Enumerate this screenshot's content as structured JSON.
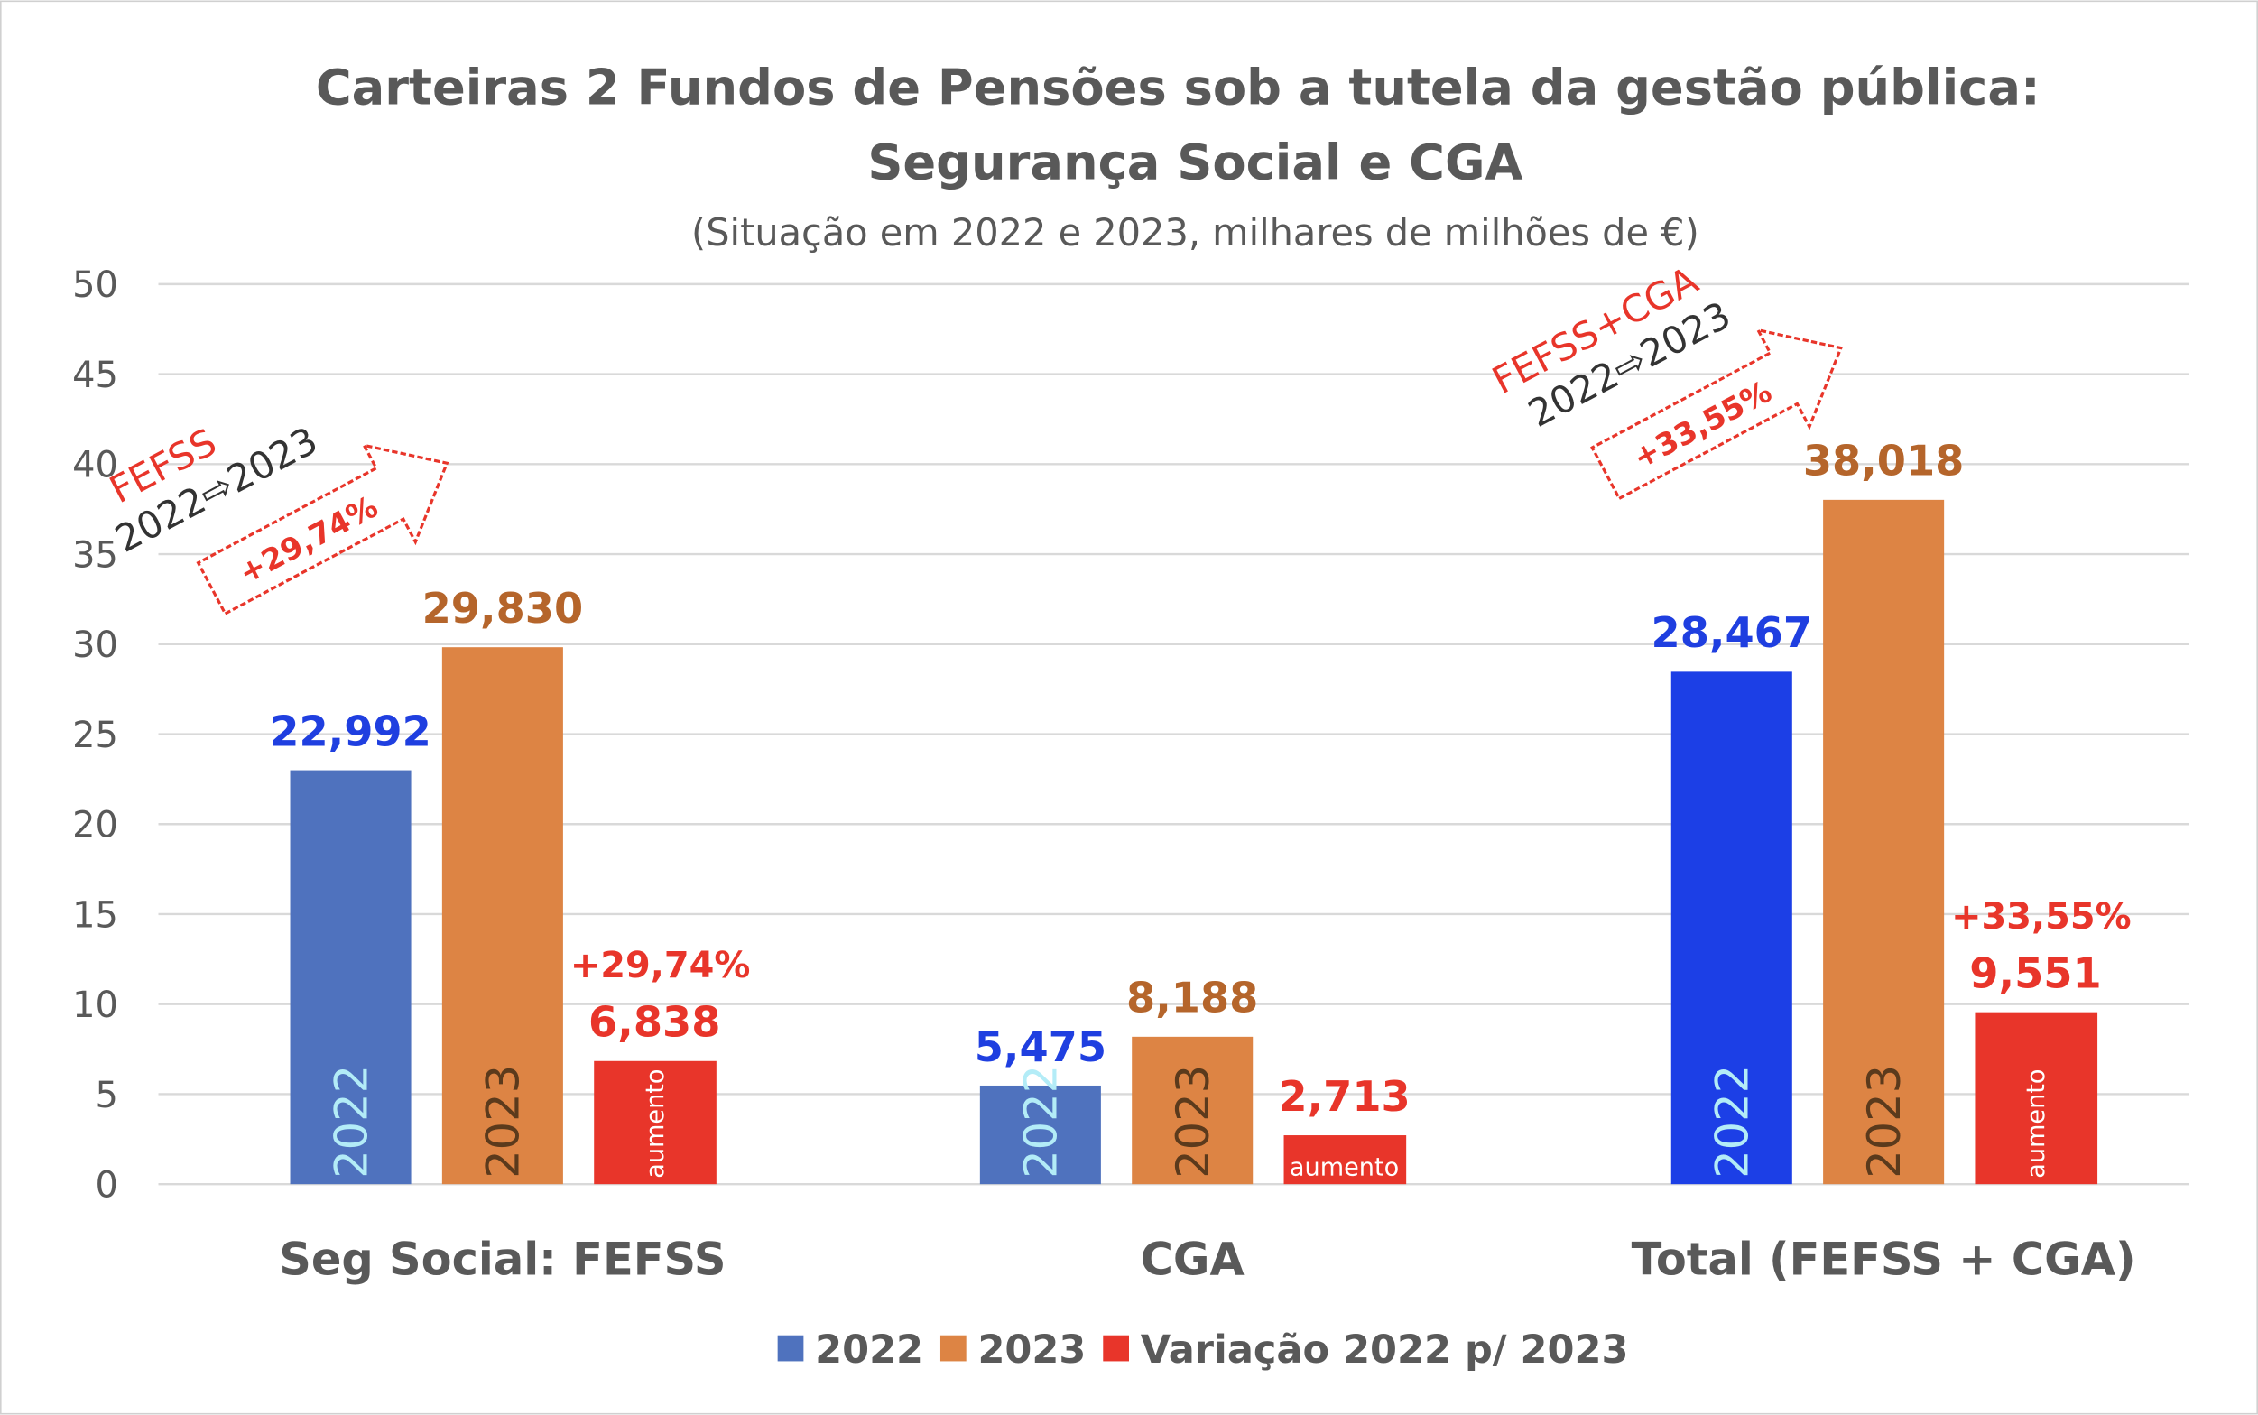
{
  "chart_data": {
    "type": "bar",
    "title": "Carteiras 2 Fundos de Pensões sob a tutela da gestão pública:",
    "title_line2": "Segurança Social e CGA",
    "subtitle": "(Situação em 2022 e 2023, milhares de milhões de €)",
    "categories": [
      "Seg Social: FEFSS",
      "CGA",
      "Total (FEFSS + CGA)"
    ],
    "series": [
      {
        "name": "2022",
        "values": [
          22.992,
          5.475,
          28.467
        ],
        "labels": [
          "22,992",
          "5,475",
          "28,467"
        ],
        "inner_label": "2022",
        "color": "#4f72be",
        "label_color": "#1f3fe0"
      },
      {
        "name": "2023",
        "values": [
          29.83,
          8.188,
          38.018
        ],
        "labels": [
          "29,830",
          "8,188",
          "38,018"
        ],
        "inner_label": "2023",
        "color": "#dd8444",
        "label_color": "#b5652b"
      },
      {
        "name": "Variação 2022 p/ 2023",
        "values": [
          6.838,
          2.713,
          9.551
        ],
        "labels": [
          "6,838",
          "2,713",
          "9,551"
        ],
        "inner_label": "aumento",
        "color": "#e8352a",
        "label_color": "#e8352a"
      }
    ],
    "total_2022_color": "#1c3fe6",
    "percent_labels": [
      "+29,74%",
      "",
      "+33,55%"
    ],
    "ylim": [
      0,
      50
    ],
    "yticks": [
      0,
      5,
      10,
      15,
      20,
      25,
      30,
      35,
      40,
      45,
      50
    ],
    "grid": true,
    "legend_position": "bottom",
    "annotations": [
      {
        "fund": "FEFSS",
        "period": "2022⇨2023",
        "change": "+29,74%"
      },
      {
        "fund": "FEFSS+CGA",
        "period": "2022⇨2023",
        "change": "+33,55%"
      }
    ]
  }
}
